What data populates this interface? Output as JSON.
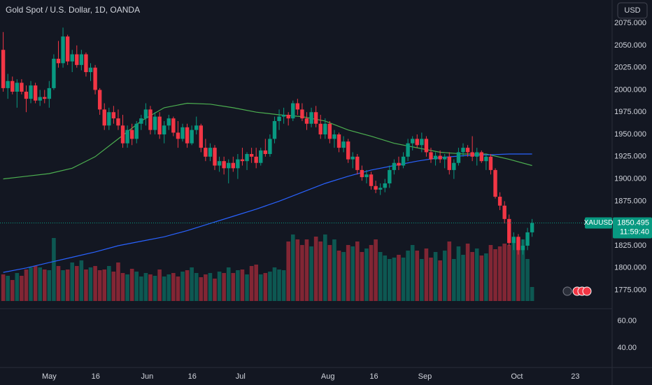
{
  "chart_data": {
    "type": "candlestick",
    "title": "Gold Spot / U.S. Dollar, 1D, OANDA",
    "currency_button": "USD",
    "symbol_label": "XAUUSD",
    "last_price": {
      "value": 1850.495,
      "label": "1850.495"
    },
    "countdown": "11:59:40",
    "up_color": "#089981",
    "down_color": "#f23645",
    "candles": [
      [
        2045,
        2065,
        1998,
        2002
      ],
      [
        2002,
        2018,
        1990,
        2010
      ],
      [
        2010,
        2015,
        1995,
        1998
      ],
      [
        1998,
        2012,
        1980,
        2008
      ],
      [
        2008,
        2012,
        1995,
        1998
      ],
      [
        1998,
        2005,
        1975,
        1990
      ],
      [
        1990,
        2010,
        1985,
        2005
      ],
      [
        2005,
        2008,
        1985,
        1988
      ],
      [
        1988,
        2000,
        1982,
        1992
      ],
      [
        1992,
        2000,
        1985,
        1990
      ],
      [
        1990,
        2010,
        1980,
        2002
      ],
      [
        2002,
        2040,
        2000,
        2035
      ],
      [
        2035,
        2055,
        2025,
        2030
      ],
      [
        2030,
        2070,
        2025,
        2060
      ],
      [
        2060,
        2062,
        2028,
        2032
      ],
      [
        2032,
        2045,
        2020,
        2040
      ],
      [
        2040,
        2050,
        2025,
        2028
      ],
      [
        2028,
        2045,
        2022,
        2040
      ],
      [
        2040,
        2042,
        2015,
        2020
      ],
      [
        2020,
        2030,
        2010,
        2025
      ],
      [
        2025,
        2028,
        1995,
        2000
      ],
      [
        2000,
        2002,
        1972,
        1978
      ],
      [
        1978,
        1985,
        1955,
        1960
      ],
      [
        1960,
        1980,
        1955,
        1975
      ],
      [
        1975,
        1982,
        1962,
        1968
      ],
      [
        1968,
        1978,
        1955,
        1960
      ],
      [
        1960,
        1972,
        1935,
        1940
      ],
      [
        1940,
        1960,
        1935,
        1955
      ],
      [
        1955,
        1962,
        1938,
        1945
      ],
      [
        1945,
        1965,
        1940,
        1962
      ],
      [
        1962,
        1972,
        1955,
        1968
      ],
      [
        1968,
        1985,
        1960,
        1978
      ],
      [
        1978,
        1982,
        1950,
        1955
      ],
      [
        1955,
        1975,
        1950,
        1970
      ],
      [
        1970,
        1975,
        1945,
        1950
      ],
      [
        1950,
        1965,
        1940,
        1960
      ],
      [
        1960,
        1972,
        1955,
        1968
      ],
      [
        1968,
        1970,
        1948,
        1952
      ],
      [
        1952,
        1965,
        1935,
        1945
      ],
      [
        1945,
        1962,
        1942,
        1958
      ],
      [
        1958,
        1962,
        1935,
        1940
      ],
      [
        1940,
        1960,
        1938,
        1955
      ],
      [
        1955,
        1970,
        1950,
        1960
      ],
      [
        1960,
        1962,
        1930,
        1935
      ],
      [
        1935,
        1945,
        1920,
        1925
      ],
      [
        1925,
        1940,
        1920,
        1935
      ],
      [
        1935,
        1938,
        1910,
        1915
      ],
      [
        1915,
        1925,
        1908,
        1920
      ],
      [
        1920,
        1925,
        1905,
        1912
      ],
      [
        1912,
        1922,
        1895,
        1918
      ],
      [
        1918,
        1925,
        1908,
        1912
      ],
      [
        1912,
        1928,
        1900,
        1922
      ],
      [
        1922,
        1935,
        1915,
        1920
      ],
      [
        1920,
        1930,
        1910,
        1928
      ],
      [
        1928,
        1935,
        1918,
        1925
      ],
      [
        1925,
        1935,
        1912,
        1918
      ],
      [
        1918,
        1935,
        1915,
        1932
      ],
      [
        1932,
        1945,
        1925,
        1928
      ],
      [
        1928,
        1950,
        1925,
        1945
      ],
      [
        1945,
        1970,
        1940,
        1965
      ],
      [
        1965,
        1978,
        1955,
        1970
      ],
      [
        1970,
        1980,
        1962,
        1972
      ],
      [
        1972,
        1975,
        1960,
        1968
      ],
      [
        1968,
        1988,
        1965,
        1985
      ],
      [
        1985,
        1990,
        1972,
        1978
      ],
      [
        1978,
        1985,
        1965,
        1968
      ],
      [
        1968,
        1975,
        1955,
        1962
      ],
      [
        1962,
        1980,
        1958,
        1975
      ],
      [
        1975,
        1982,
        1958,
        1962
      ],
      [
        1962,
        1972,
        1945,
        1950
      ],
      [
        1950,
        1968,
        1945,
        1962
      ],
      [
        1962,
        1965,
        1940,
        1945
      ],
      [
        1945,
        1955,
        1935,
        1950
      ],
      [
        1950,
        1952,
        1930,
        1935
      ],
      [
        1935,
        1948,
        1930,
        1942
      ],
      [
        1942,
        1945,
        1918,
        1922
      ],
      [
        1922,
        1930,
        1912,
        1925
      ],
      [
        1925,
        1928,
        1905,
        1910
      ],
      [
        1910,
        1915,
        1898,
        1902
      ],
      [
        1902,
        1910,
        1895,
        1905
      ],
      [
        1905,
        1908,
        1888,
        1892
      ],
      [
        1892,
        1898,
        1884,
        1888
      ],
      [
        1888,
        1895,
        1882,
        1890
      ],
      [
        1890,
        1900,
        1885,
        1895
      ],
      [
        1895,
        1915,
        1890,
        1910
      ],
      [
        1910,
        1922,
        1905,
        1918
      ],
      [
        1918,
        1925,
        1910,
        1915
      ],
      [
        1915,
        1930,
        1912,
        1925
      ],
      [
        1925,
        1945,
        1920,
        1940
      ],
      [
        1940,
        1948,
        1932,
        1945
      ],
      [
        1945,
        1950,
        1935,
        1938
      ],
      [
        1938,
        1952,
        1930,
        1945
      ],
      [
        1945,
        1948,
        1925,
        1930
      ],
      [
        1930,
        1935,
        1918,
        1922
      ],
      [
        1922,
        1930,
        1915,
        1926
      ],
      [
        1926,
        1932,
        1918,
        1922
      ],
      [
        1922,
        1928,
        1912,
        1925
      ],
      [
        1925,
        1930,
        1905,
        1910
      ],
      [
        1910,
        1922,
        1900,
        1918
      ],
      [
        1918,
        1935,
        1915,
        1930
      ],
      [
        1930,
        1940,
        1925,
        1935
      ],
      [
        1935,
        1938,
        1925,
        1930
      ],
      [
        1930,
        1948,
        1920,
        1925
      ],
      [
        1925,
        1935,
        1915,
        1930
      ],
      [
        1930,
        1932,
        1918,
        1920
      ],
      [
        1920,
        1928,
        1910,
        1925
      ],
      [
        1925,
        1928,
        1905,
        1910
      ],
      [
        1910,
        1912,
        1878,
        1880
      ],
      [
        1880,
        1885,
        1865,
        1870
      ],
      [
        1870,
        1875,
        1850,
        1855
      ],
      [
        1855,
        1860,
        1825,
        1828
      ],
      [
        1828,
        1840,
        1820,
        1835
      ],
      [
        1835,
        1838,
        1815,
        1820
      ],
      [
        1820,
        1832,
        1815,
        1825
      ],
      [
        1825,
        1845,
        1820,
        1840
      ],
      [
        1840,
        1855,
        1835,
        1850.495
      ]
    ],
    "volume": [
      38,
      36,
      30,
      40,
      36,
      45,
      48,
      50,
      48,
      45,
      44,
      90,
      50,
      44,
      45,
      55,
      50,
      58,
      45,
      48,
      50,
      44,
      45,
      50,
      42,
      55,
      40,
      38,
      46,
      42,
      35,
      40,
      38,
      36,
      45,
      35,
      38,
      40,
      35,
      42,
      44,
      48,
      40,
      34,
      38,
      40,
      32,
      42,
      40,
      48,
      40,
      44,
      45,
      38,
      50,
      52,
      38,
      40,
      42,
      48,
      45,
      44,
      85,
      95,
      88,
      80,
      88,
      78,
      92,
      85,
      95,
      80,
      88,
      72,
      70,
      80,
      78,
      85,
      70,
      75,
      80,
      88,
      70,
      65,
      60,
      62,
      66,
      62,
      72,
      80,
      72,
      60,
      75,
      62,
      70,
      58,
      72,
      85,
      60,
      78,
      66,
      82,
      70,
      75,
      65,
      68,
      80,
      74,
      78,
      82,
      80,
      84,
      90,
      88,
      60,
      20
    ],
    "vlim": [
      0,
      120
    ],
    "series": [
      {
        "color": "#4caf50",
        "x": [
          0,
          5,
          10,
          15,
          20,
          25,
          30,
          35,
          40,
          45,
          50,
          55,
          60,
          65,
          70,
          75,
          80,
          85,
          90,
          95,
          100,
          105,
          110,
          115
        ],
        "values": [
          1900,
          1903,
          1906,
          1912,
          1925,
          1945,
          1965,
          1980,
          1985,
          1984,
          1980,
          1975,
          1972,
          1970,
          1965,
          1955,
          1948,
          1940,
          1935,
          1930,
          1928,
          1928,
          1922,
          1915
        ]
      },
      {
        "color": "#2962ff",
        "x": [
          0,
          5,
          10,
          15,
          20,
          25,
          30,
          35,
          40,
          45,
          50,
          55,
          60,
          65,
          70,
          75,
          80,
          85,
          90,
          95,
          100,
          105,
          110,
          115
        ],
        "values": [
          1795,
          1800,
          1806,
          1812,
          1818,
          1825,
          1830,
          1835,
          1842,
          1850,
          1858,
          1866,
          1875,
          1885,
          1895,
          1903,
          1910,
          1915,
          1920,
          1924,
          1926,
          1927,
          1928,
          1928
        ]
      }
    ],
    "ylim": [
      1755,
      2101
    ],
    "yticks": [
      {
        "value": 2075,
        "label": "2075.000"
      },
      {
        "value": 2050,
        "label": "2050.000"
      },
      {
        "value": 2025,
        "label": "2025.000"
      },
      {
        "value": 2000,
        "label": "2000.000"
      },
      {
        "value": 1975,
        "label": "1975.000"
      },
      {
        "value": 1950,
        "label": "1950.000"
      },
      {
        "value": 1925,
        "label": "1925.000"
      },
      {
        "value": 1900,
        "label": "1900.000"
      },
      {
        "value": 1875,
        "label": "1875.000"
      },
      {
        "value": 1825,
        "label": "1825.000"
      },
      {
        "value": 1800,
        "label": "1800.000"
      },
      {
        "value": 1775,
        "label": "1775.000"
      }
    ],
    "indicator_ylim": [
      25.6,
      69.2
    ],
    "indicator_yticks": [
      {
        "value": 60,
        "label": "60.00"
      },
      {
        "value": 40,
        "label": "40.00"
      }
    ],
    "xlim": [
      -0.7,
      132.4
    ],
    "xticks": [
      {
        "value": 10,
        "label": "May"
      },
      {
        "value": 20.1,
        "label": "16"
      },
      {
        "value": 31.3,
        "label": "Jun"
      },
      {
        "value": 41.1,
        "label": "16"
      },
      {
        "value": 51.6,
        "label": "Jul"
      },
      {
        "value": 70.6,
        "label": "Aug"
      },
      {
        "value": 80.6,
        "label": "16"
      },
      {
        "value": 91.7,
        "label": "Sep"
      },
      {
        "value": 111.7,
        "label": "Oct"
      },
      {
        "value": 124.4,
        "label": "23"
      }
    ]
  }
}
